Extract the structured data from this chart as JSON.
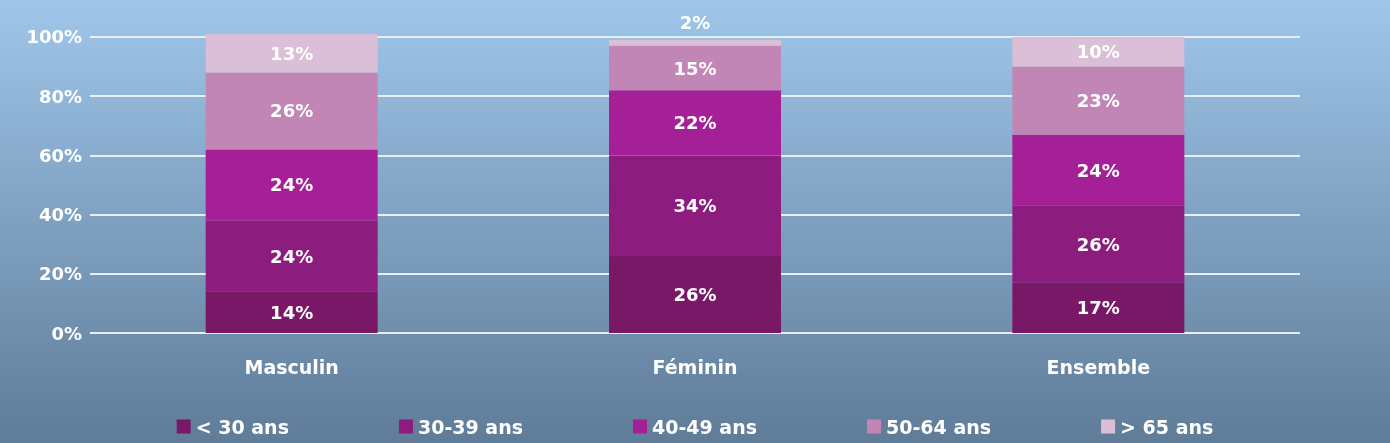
{
  "chart_data": {
    "type": "bar",
    "stacked": true,
    "categories": [
      "Masculin",
      "Féminin",
      "Ensemble"
    ],
    "series": [
      {
        "name": "< 30 ans",
        "color": "#7a1868",
        "values": [
          14,
          26,
          17
        ],
        "value_labels": [
          "14%",
          "26%",
          "17%"
        ]
      },
      {
        "name": "30-39 ans",
        "color": "#8c1d7e",
        "values": [
          24,
          34,
          26
        ],
        "value_labels": [
          "24%",
          "34%",
          "26%"
        ]
      },
      {
        "name": "40-49 ans",
        "color": "#a52097",
        "values": [
          24,
          22,
          24
        ],
        "value_labels": [
          "24%",
          "22%",
          "24%"
        ]
      },
      {
        "name": "50-64 ans",
        "color": "#c186b6",
        "values": [
          26,
          15,
          23
        ],
        "value_labels": [
          "26%",
          "15%",
          "23%"
        ]
      },
      {
        "name": "> 65 ans",
        "color": "#dbbfd6",
        "values": [
          13,
          2,
          10
        ],
        "value_labels": [
          "13%",
          "2%",
          "10%"
        ]
      }
    ],
    "ylim": [
      0,
      101
    ],
    "yticks": [
      {
        "value": 0,
        "label": "0%"
      },
      {
        "value": 20,
        "label": "20%"
      },
      {
        "value": 40,
        "label": "40%"
      },
      {
        "value": 60,
        "label": "60%"
      },
      {
        "value": 80,
        "label": "80%"
      },
      {
        "value": 100,
        "label": "100%"
      }
    ],
    "grid": "y",
    "legend": "bottom"
  }
}
